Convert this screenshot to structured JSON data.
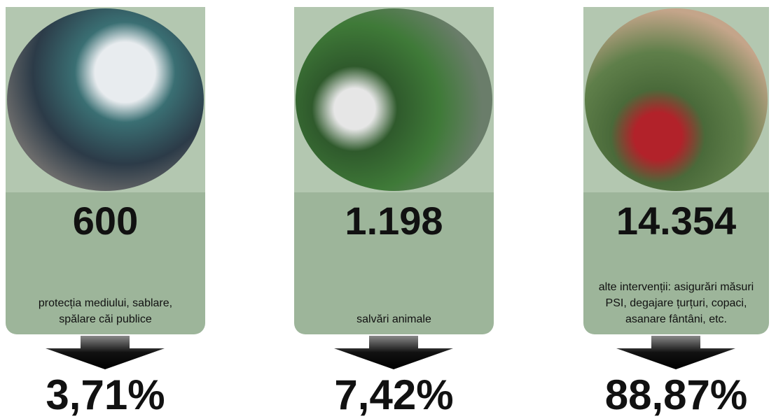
{
  "panels": [
    {
      "count": "600",
      "description": "protecția mediului, sablare, spălare căi publice",
      "percent": "3,71%"
    },
    {
      "count": "1.198",
      "description": "salvări animale",
      "percent": "7,42%"
    },
    {
      "count": "14.354",
      "description": "alte intervenții: asigurări măsuri PSI, degajare țurțuri, copaci, asanare fântâni, etc.",
      "percent": "88,87%"
    }
  ]
}
